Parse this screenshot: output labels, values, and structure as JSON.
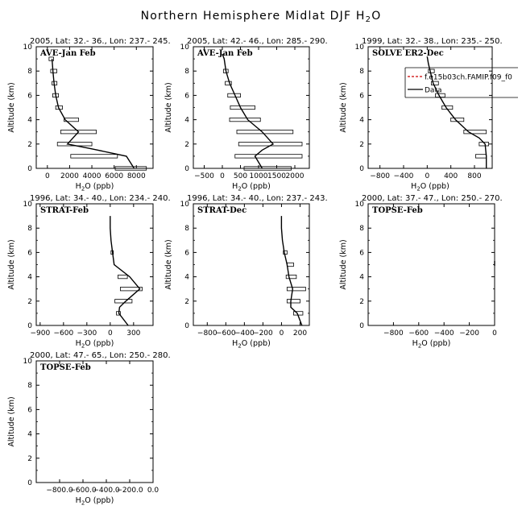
{
  "figure": {
    "title_main": "Northern Hemisphere Midlat DJF H",
    "title_sub": "2",
    "title_tail": "O"
  },
  "chart_data": [
    {
      "type": "line",
      "header": "2005, Lat: 32.- 36., Lon: 237.- 245.",
      "label": "AVE-Jan Feb",
      "xlabel": "H2O (ppb)",
      "ylabel": "Altitude (km)",
      "xlim": [
        -1000,
        9500
      ],
      "ylim": [
        0,
        10
      ],
      "xticks": [
        0,
        2000,
        4000,
        6000,
        8000
      ],
      "yticks": [
        0,
        2,
        4,
        6,
        8,
        10
      ],
      "series": [
        {
          "x": [
            7800,
            7100,
            4000,
            1800,
            2800,
            1600,
            1000,
            750,
            600,
            500,
            420
          ],
          "y": [
            0,
            1,
            1.6,
            2,
            3,
            4,
            5,
            6,
            7,
            8,
            9
          ]
        }
      ],
      "boxes": [
        {
          "y": 0,
          "x0": 6100,
          "x1": 8900
        },
        {
          "y": 1,
          "x0": 2100,
          "x1": 6300
        },
        {
          "y": 2,
          "x0": 900,
          "x1": 4000
        },
        {
          "y": 3,
          "x0": 1200,
          "x1": 4400
        },
        {
          "y": 4,
          "x0": 1500,
          "x1": 2800
        },
        {
          "y": 5,
          "x0": 750,
          "x1": 1350
        },
        {
          "y": 6,
          "x0": 480,
          "x1": 1000
        },
        {
          "y": 7,
          "x0": 420,
          "x1": 860
        },
        {
          "y": 8,
          "x0": 300,
          "x1": 850
        },
        {
          "y": 9,
          "x0": 150,
          "x1": 560
        }
      ]
    },
    {
      "type": "line",
      "header": "2005, Lat: 42.- 46., Lon: 285.- 290.",
      "label": "AVE-Jan Feb",
      "xlabel": "H2O (ppb)",
      "ylabel": "Altitude (km)",
      "xlim": [
        -800,
        2400
      ],
      "ylim": [
        0,
        10
      ],
      "xticks": [
        -500,
        0,
        500,
        1000,
        1500,
        2000
      ],
      "yticks": [
        0,
        2,
        4,
        6,
        8,
        10
      ],
      "series": [
        {
          "x": [
            1100,
            900,
            1100,
            1400,
            1100,
            700,
            500,
            350,
            200,
            100,
            50,
            0
          ],
          "y": [
            0,
            1,
            1.5,
            2,
            3,
            4,
            5,
            6,
            7,
            8,
            9,
            9.4
          ]
        }
      ],
      "boxes": [
        {
          "y": 0,
          "x0": 600,
          "x1": 1900
        },
        {
          "y": 1,
          "x0": 350,
          "x1": 2200
        },
        {
          "y": 2,
          "x0": 450,
          "x1": 2200
        },
        {
          "y": 3,
          "x0": 400,
          "x1": 1950
        },
        {
          "y": 4,
          "x0": 200,
          "x1": 1050
        },
        {
          "y": 5,
          "x0": 220,
          "x1": 900
        },
        {
          "y": 6,
          "x0": 150,
          "x1": 500
        },
        {
          "y": 7,
          "x0": 80,
          "x1": 250
        },
        {
          "y": 8,
          "x0": 30,
          "x1": 160
        }
      ]
    },
    {
      "type": "line",
      "header": "1999, Lat: 32.- 38., Lon: 235.- 250.",
      "label": "SOLVE ER2-Dec",
      "xlabel": "H2O (ppb)",
      "ylabel": "Altitude (km)",
      "xlim": [
        -1000,
        1100
      ],
      "ylim": [
        0,
        10
      ],
      "xticks": [
        -800,
        -400,
        0,
        400,
        800
      ],
      "yticks": [
        0,
        2,
        4,
        6,
        8,
        10
      ],
      "legend": {
        "entries": [
          {
            "name": "f.e15b03ch.FAMIP.f09_f0",
            "color": "#cc0000",
            "style": "dashed"
          },
          {
            "name": "Data",
            "color": "#000000",
            "style": "solid"
          }
        ]
      },
      "series": [
        {
          "x": [
            1000,
            1000,
            980,
            880,
            700,
            480,
            320,
            200,
            100,
            50,
            20,
            0
          ],
          "y": [
            0,
            1,
            2,
            2.5,
            3,
            4,
            5,
            6,
            7,
            8,
            8.6,
            9.2
          ]
        }
      ],
      "boxes": [
        {
          "y": 1,
          "x0": 820,
          "x1": 1000
        },
        {
          "y": 2,
          "x0": 880,
          "x1": 1040
        },
        {
          "y": 3,
          "x0": 620,
          "x1": 1000
        },
        {
          "y": 4,
          "x0": 400,
          "x1": 620
        },
        {
          "y": 5,
          "x0": 250,
          "x1": 430
        },
        {
          "y": 6,
          "x0": 140,
          "x1": 300
        },
        {
          "y": 7,
          "x0": 70,
          "x1": 190
        },
        {
          "y": 8,
          "x0": 20,
          "x1": 120
        }
      ]
    },
    {
      "type": "line",
      "header": "1996, Lat: 34.- 40., Lon: 234.- 240.",
      "label": "STRAT-Feb",
      "xlabel": "H2O (ppb)",
      "ylabel": "Altitude (km)",
      "xlim": [
        -950,
        550
      ],
      "ylim": [
        0,
        10
      ],
      "xticks": [
        -900,
        -600,
        -300,
        0,
        300
      ],
      "yticks": [
        0,
        2,
        4,
        6,
        8,
        10
      ],
      "series": [
        {
          "x": [
            230,
            110,
            120,
            200,
            380,
            250,
            50,
            30,
            10,
            0,
            0
          ],
          "y": [
            0,
            1,
            1.5,
            2,
            3,
            4,
            5,
            6,
            7,
            8,
            9
          ]
        }
      ],
      "boxes": [
        {
          "y": 1,
          "x0": 80,
          "x1": 130
        },
        {
          "y": 2,
          "x0": 60,
          "x1": 280
        },
        {
          "y": 3,
          "x0": 130,
          "x1": 410
        },
        {
          "y": 4,
          "x0": 100,
          "x1": 220
        },
        {
          "y": 6,
          "x0": 10,
          "x1": 40
        }
      ]
    },
    {
      "type": "line",
      "header": "1996, Lat: 34.- 40., Lon: 237.- 243.",
      "label": "STRAT-Dec",
      "xlabel": "H2O (ppb)",
      "ylabel": "Altitude (km)",
      "xlim": [
        -950,
        300
      ],
      "ylim": [
        0,
        10
      ],
      "xticks": [
        -800,
        -600,
        -400,
        -200,
        0,
        200
      ],
      "yticks": [
        0,
        2,
        4,
        6,
        8,
        10
      ],
      "series": [
        {
          "x": [
            220,
            170,
            100,
            100,
            120,
            80,
            60,
            30,
            10,
            0,
            0
          ],
          "y": [
            0,
            1,
            1.5,
            2,
            3,
            4,
            5,
            6,
            7,
            8,
            9
          ]
        }
      ],
      "boxes": [
        {
          "y": 1,
          "x0": 130,
          "x1": 230
        },
        {
          "y": 2,
          "x0": 60,
          "x1": 200
        },
        {
          "y": 3,
          "x0": 60,
          "x1": 260
        },
        {
          "y": 4,
          "x0": 50,
          "x1": 160
        },
        {
          "y": 5,
          "x0": 60,
          "x1": 130
        },
        {
          "y": 6,
          "x0": 20,
          "x1": 60
        }
      ]
    },
    {
      "type": "line",
      "header": "2000, Lat: 37.- 47., Lon: 250.- 270.",
      "label": "TOPSE-Feb",
      "xlabel": "H2O (ppb)",
      "ylabel": "Altitude (km)",
      "xlim": [
        -1000,
        0
      ],
      "ylim": [
        0,
        10
      ],
      "xticks": [
        -800,
        -600,
        -400,
        -200,
        0
      ],
      "yticks": [
        0,
        2,
        4,
        6,
        8,
        10
      ],
      "series": [
        {
          "x": [
            0,
            0
          ],
          "y": [
            4.9,
            5.3
          ]
        }
      ],
      "boxes": []
    },
    {
      "type": "line",
      "header": "2000, Lat: 47.- 65., Lon: 250.- 280.",
      "label": "TOPSE-Feb",
      "xlabel": "H2O (ppb)",
      "ylabel": "Altitude (km)",
      "xlim": [
        -1000,
        0
      ],
      "ylim": [
        0,
        10
      ],
      "xticks": [
        -800,
        -600,
        -400,
        -200,
        0
      ],
      "xticklabels": [
        "-800.0",
        "-600.0",
        "-400.0",
        "-200.0",
        "0.0"
      ],
      "yticks": [
        0,
        2,
        4,
        6,
        8,
        10
      ],
      "series": [],
      "boxes": []
    }
  ]
}
